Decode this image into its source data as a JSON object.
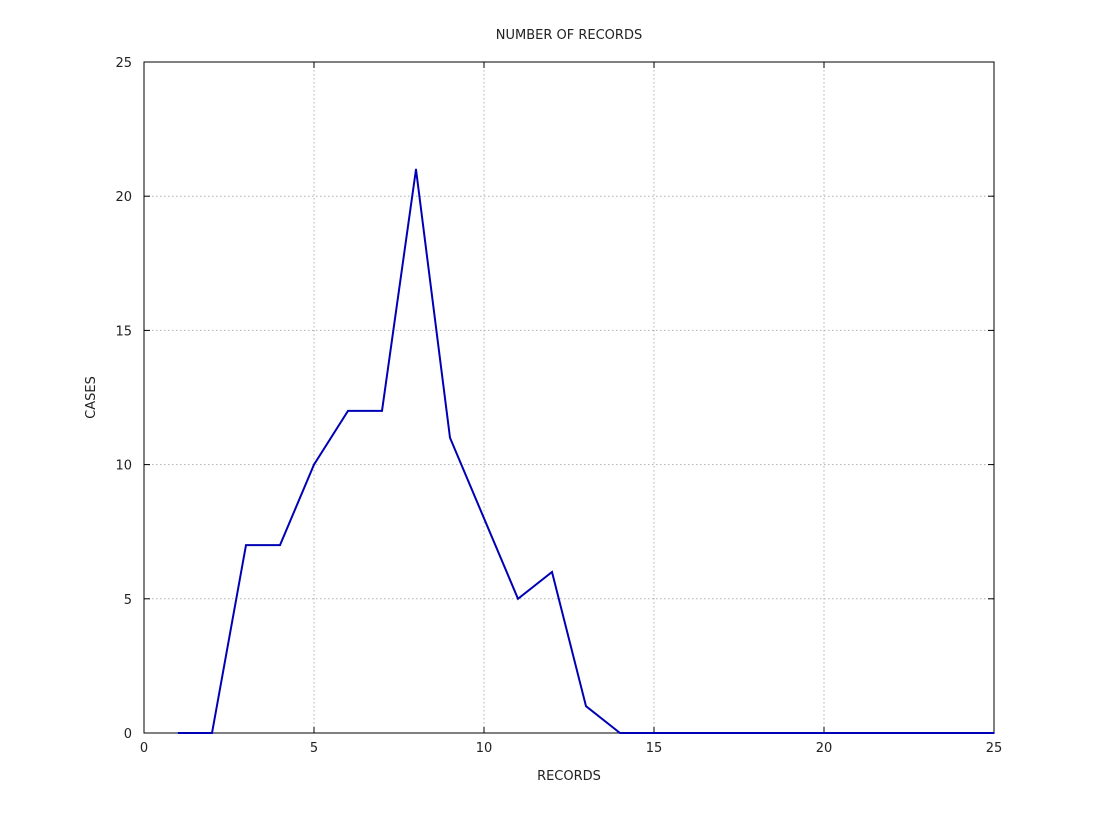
{
  "chart_data": {
    "type": "line",
    "title": "NUMBER OF RECORDS",
    "xlabel": "RECORDS",
    "ylabel": "CASES",
    "xlim": [
      0,
      25
    ],
    "ylim": [
      0,
      25
    ],
    "x_ticks": [
      "0",
      "5",
      "10",
      "15",
      "20",
      "25"
    ],
    "y_ticks": [
      "0",
      "5",
      "10",
      "15",
      "20",
      "25"
    ],
    "grid": true,
    "series": [
      {
        "color": "#0000b4",
        "x": [
          1,
          2,
          3,
          4,
          5,
          6,
          7,
          8,
          9,
          10,
          11,
          12,
          13,
          14,
          15,
          16,
          17,
          18,
          19,
          20,
          21,
          22,
          23,
          24,
          25
        ],
        "values": [
          0,
          0,
          7,
          7,
          10,
          12,
          12,
          21,
          11,
          8,
          5,
          6,
          1,
          0,
          0,
          0,
          0,
          0,
          0,
          0,
          0,
          0,
          0,
          0,
          0
        ]
      }
    ]
  }
}
